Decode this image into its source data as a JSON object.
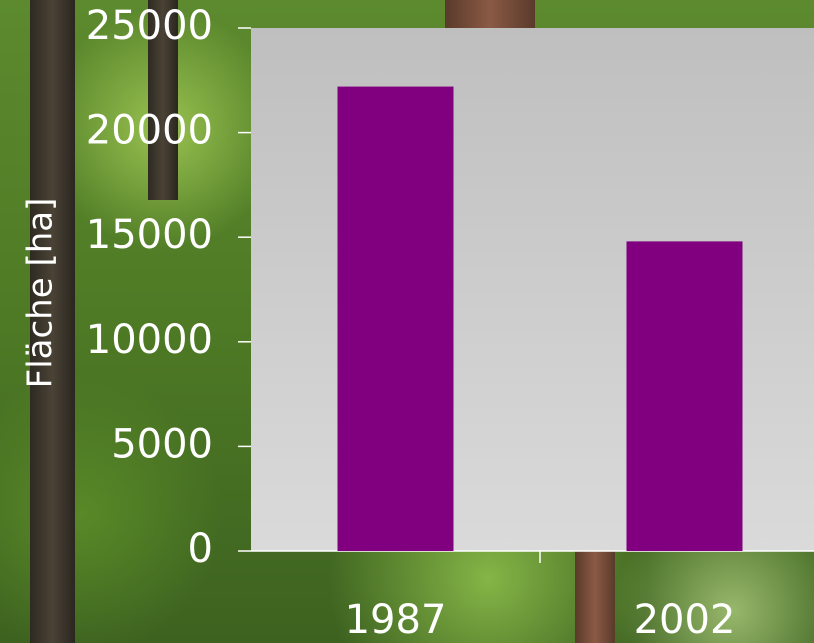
{
  "chart_data": {
    "type": "bar",
    "ylabel": "Fläche [ha]",
    "categories": [
      "1987",
      "2002"
    ],
    "values": [
      22200,
      14800
    ],
    "color": "#800080",
    "ylim": [
      0,
      25000
    ],
    "yticks": [
      0,
      5000,
      10000,
      15000,
      20000,
      25000
    ]
  }
}
